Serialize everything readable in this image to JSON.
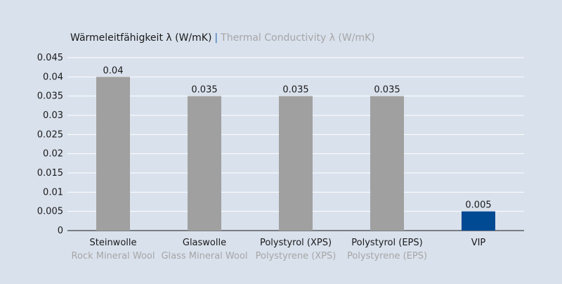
{
  "chart_data": {
    "type": "bar",
    "title": {
      "primary": "Wärmeleitfähigkeit λ (W/mK)",
      "separator": "|",
      "secondary": "Thermal Conductivity λ (W/mK)"
    },
    "categories": [
      {
        "primary": "Steinwolle",
        "secondary": "Rock Mineral Wool"
      },
      {
        "primary": "Glaswolle",
        "secondary": "Glass Mineral Wool"
      },
      {
        "primary": "Polystyrol (XPS)",
        "secondary": "Polystyrene (XPS)"
      },
      {
        "primary": "Polystyrol (EPS)",
        "secondary": "Polystyrene (EPS)"
      },
      {
        "primary": "VIP",
        "secondary": ""
      }
    ],
    "values": [
      0.04,
      0.035,
      0.035,
      0.035,
      0.005
    ],
    "value_labels": [
      "0.04",
      "0.035",
      "0.035",
      "0.035",
      "0.005"
    ],
    "bar_colors": [
      "#a0a0a0",
      "#a0a0a0",
      "#a0a0a0",
      "#a0a0a0",
      "#004a94"
    ],
    "yticks": [
      "0",
      "0.005",
      "0.01",
      "0.015",
      "0.02",
      "0.025",
      "0.03",
      "0.035",
      "0.04",
      "0.045"
    ],
    "ylim": [
      0,
      0.045
    ],
    "grid": true,
    "xlabel": "",
    "ylabel": ""
  }
}
